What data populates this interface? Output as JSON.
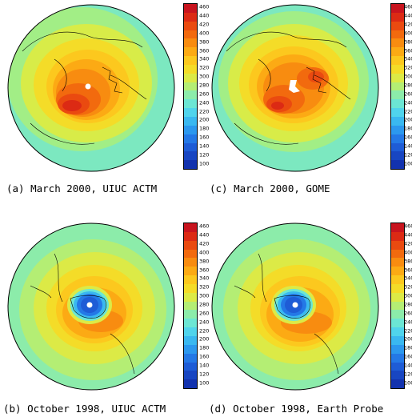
{
  "colorbar": {
    "labels": [
      "460",
      "440",
      "420",
      "400",
      "380",
      "360",
      "340",
      "320",
      "300",
      "280",
      "260",
      "240",
      "220",
      "200",
      "180",
      "160",
      "140",
      "120",
      "100"
    ],
    "colors": [
      "#c8141e",
      "#dc2a14",
      "#ea4a10",
      "#f26a0e",
      "#f88c10",
      "#fcaa14",
      "#fcc81e",
      "#f4dc28",
      "#dcea46",
      "#b4ee74",
      "#8cecaa",
      "#6ce6d4",
      "#50d4ec",
      "#3ab8f0",
      "#2c98ee",
      "#2478e6",
      "#1e5cd6",
      "#1846c2",
      "#1232ae"
    ]
  },
  "panels": [
    {
      "id": "a",
      "caption": "(a) March 2000, UIUC ACTM"
    },
    {
      "id": "c",
      "caption": "(c) March 2000, GOME"
    },
    {
      "id": "b",
      "caption": "(b) October 1998, UIUC ACTM"
    },
    {
      "id": "d",
      "caption": "(d) October 1998, Earth Probe"
    }
  ]
}
